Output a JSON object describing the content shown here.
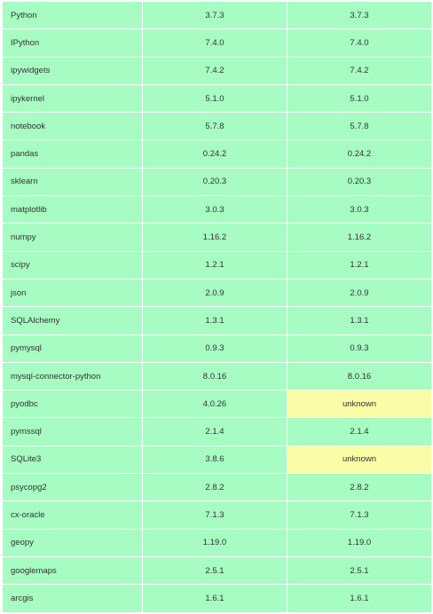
{
  "colors": {
    "match": "#a6fcc2",
    "unknown": "#fbfca6"
  },
  "packages": [
    {
      "name": "Python",
      "v1": "3.7.3",
      "v2": "3.7.3",
      "status2": "ok"
    },
    {
      "name": "IPython",
      "v1": "7.4.0",
      "v2": "7.4.0",
      "status2": "ok"
    },
    {
      "name": "ipywidgets",
      "v1": "7.4.2",
      "v2": "7.4.2",
      "status2": "ok"
    },
    {
      "name": "ipykernel",
      "v1": "5.1.0",
      "v2": "5.1.0",
      "status2": "ok"
    },
    {
      "name": "notebook",
      "v1": "5.7.8",
      "v2": "5.7.8",
      "status2": "ok"
    },
    {
      "name": "pandas",
      "v1": "0.24.2",
      "v2": "0.24.2",
      "status2": "ok"
    },
    {
      "name": "sklearn",
      "v1": "0.20.3",
      "v2": "0.20.3",
      "status2": "ok"
    },
    {
      "name": "matplotlib",
      "v1": "3.0.3",
      "v2": "3.0.3",
      "status2": "ok"
    },
    {
      "name": "numpy",
      "v1": "1.16.2",
      "v2": "1.16.2",
      "status2": "ok"
    },
    {
      "name": "scipy",
      "v1": "1.2.1",
      "v2": "1.2.1",
      "status2": "ok"
    },
    {
      "name": "json",
      "v1": "2.0.9",
      "v2": "2.0.9",
      "status2": "ok"
    },
    {
      "name": "SQLAlchemy",
      "v1": "1.3.1",
      "v2": "1.3.1",
      "status2": "ok"
    },
    {
      "name": "pymysql",
      "v1": "0.9.3",
      "v2": "0.9.3",
      "status2": "ok"
    },
    {
      "name": "mysql-connector-python",
      "v1": "8.0.16",
      "v2": "8.0.16",
      "status2": "ok"
    },
    {
      "name": "pyodbc",
      "v1": "4.0.26",
      "v2": "unknown",
      "status2": "warn"
    },
    {
      "name": "pymssql",
      "v1": "2.1.4",
      "v2": "2.1.4",
      "status2": "ok"
    },
    {
      "name": "SQLite3",
      "v1": "3.8.6",
      "v2": "unknown",
      "status2": "warn"
    },
    {
      "name": "psycopg2",
      "v1": "2.8.2",
      "v2": "2.8.2",
      "status2": "ok"
    },
    {
      "name": "cx-oracle",
      "v1": "7.1.3",
      "v2": "7.1.3",
      "status2": "ok"
    },
    {
      "name": "geopy",
      "v1": "1.19.0",
      "v2": "1.19.0",
      "status2": "ok"
    },
    {
      "name": "googlemaps",
      "v1": "2.5.1",
      "v2": "2.5.1",
      "status2": "ok"
    },
    {
      "name": "arcgis",
      "v1": "1.6.1",
      "v2": "1.6.1",
      "status2": "ok"
    }
  ]
}
